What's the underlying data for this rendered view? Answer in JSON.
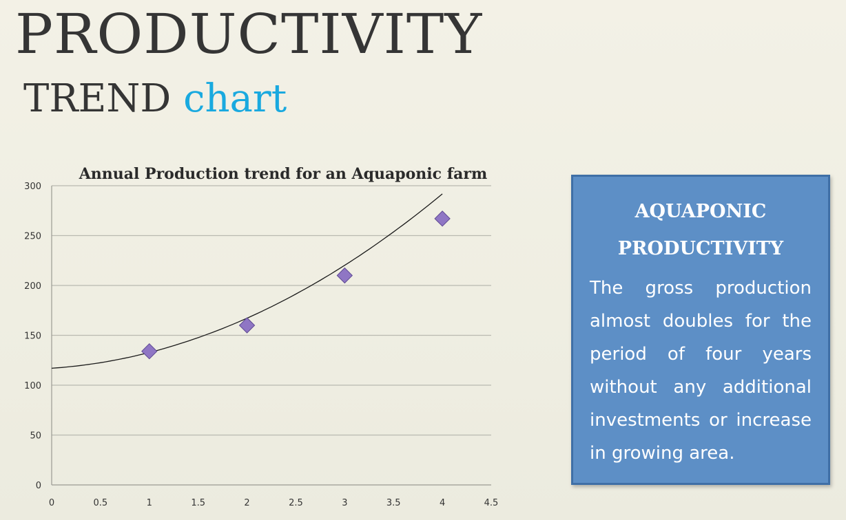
{
  "slide": {
    "title": "PRODUCTIVITY",
    "subtitle_word": "TREND",
    "subtitle_accent": "chart",
    "accent_color": "#19a9df"
  },
  "info_box": {
    "heading_line1": "AQUAPONIC",
    "heading_line2": "PRODUCTIVITY",
    "body": "The gross production almost doubles for the period of four years without any additional investments or increase in growing area.",
    "background_color": "#5d8fc6"
  },
  "chart_data": {
    "type": "scatter",
    "title": "Annual Production trend for an Aquaponic farm",
    "xlabel": "",
    "ylabel": "",
    "xlim": [
      0,
      4.5
    ],
    "ylim": [
      0,
      300
    ],
    "xticks": [
      "0",
      "0.5",
      "1",
      "1.5",
      "2",
      "2.5",
      "3",
      "3.5",
      "4",
      "4.5"
    ],
    "yticks": [
      "0",
      "50",
      "100",
      "150",
      "200",
      "250",
      "300"
    ],
    "grid": true,
    "legend": "none",
    "marker": "diamond",
    "marker_color": "#8f76c4",
    "series": [
      {
        "x": [
          1,
          2,
          3,
          4
        ],
        "y": [
          134,
          160,
          210,
          267
        ]
      }
    ],
    "trendline": {
      "type": "polynomial",
      "coefficients": [
        117,
        6.5,
        9.3
      ],
      "x_range": [
        0,
        4
      ]
    }
  }
}
